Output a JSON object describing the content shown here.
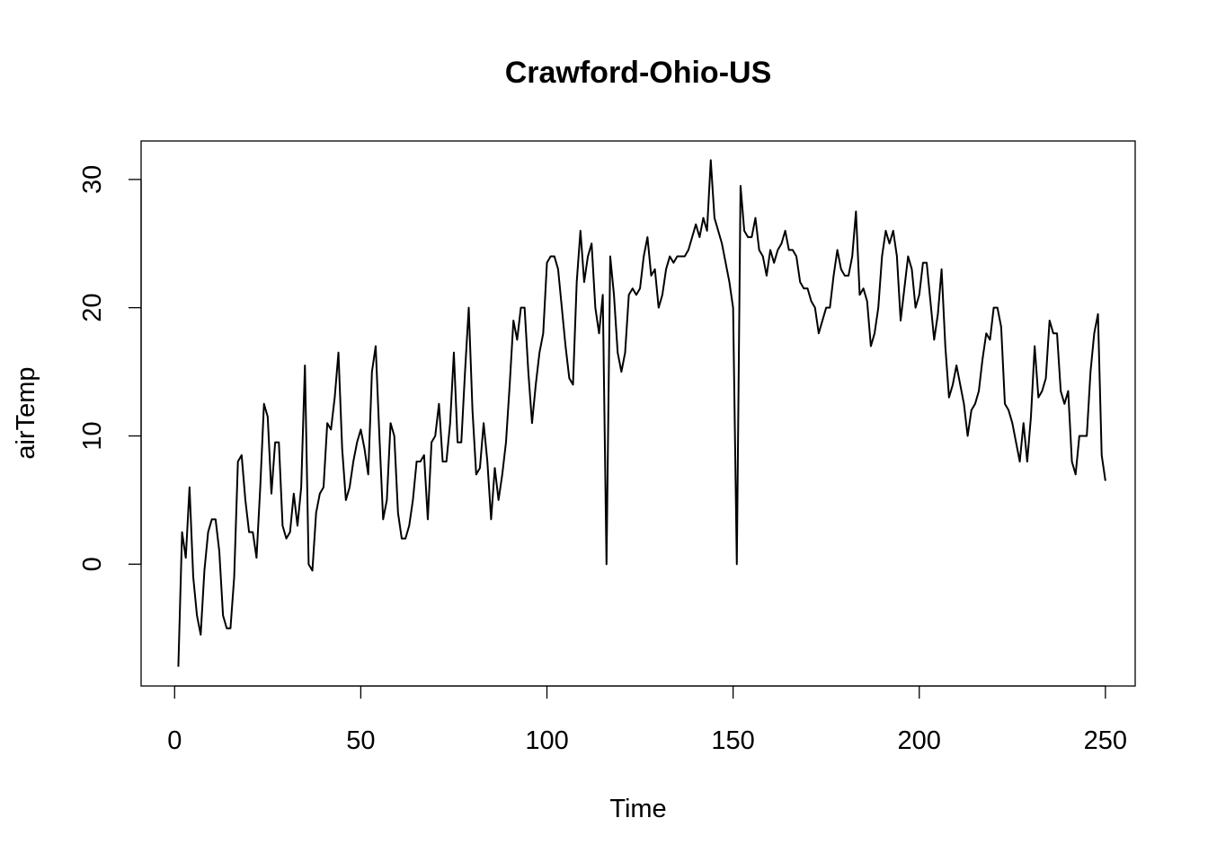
{
  "chart_data": {
    "type": "line",
    "title": "Crawford-Ohio-US",
    "xlabel": "Time",
    "ylabel": "airTemp",
    "xlim": [
      -9,
      258
    ],
    "ylim": [
      -9.5,
      33
    ],
    "x_ticks": [
      0,
      50,
      100,
      150,
      200,
      250
    ],
    "y_ticks": [
      0,
      10,
      20,
      30
    ],
    "grid": false,
    "line_color": "#000000",
    "series": [
      {
        "x_start": 1,
        "values": [
          -8,
          2.5,
          0.5,
          6,
          -1,
          -4,
          -5.5,
          -0.5,
          2.5,
          3.5,
          3.5,
          1,
          -4,
          -5,
          -5,
          -1,
          8,
          8.5,
          5,
          2.5,
          2.5,
          0.5,
          6,
          12.5,
          11.5,
          5.5,
          9.5,
          9.5,
          3,
          2,
          2.5,
          5.5,
          3,
          6,
          15.5,
          0,
          -0.5,
          4,
          5.5,
          6,
          11,
          10.5,
          13,
          16.5,
          9,
          5,
          6,
          8,
          9.5,
          10.5,
          9,
          7,
          15,
          17,
          10,
          3.5,
          5,
          11,
          10,
          4,
          2,
          2,
          3,
          5,
          8,
          8,
          8.5,
          3.5,
          9.5,
          10,
          12.5,
          8,
          8,
          11,
          16.5,
          9.5,
          9.5,
          15,
          20,
          12,
          7,
          7.5,
          11,
          8,
          3.5,
          7.5,
          5,
          7,
          9.5,
          14,
          19,
          17.5,
          20,
          20,
          15,
          11,
          14,
          16.5,
          18,
          23.5,
          24,
          24,
          23,
          20,
          17,
          14.5,
          14,
          22,
          26,
          22,
          24,
          25,
          20,
          18,
          21,
          0,
          24,
          21,
          16.5,
          15,
          16.5,
          21,
          21.5,
          21,
          21.5,
          24,
          25.5,
          22.5,
          23,
          20,
          21,
          23,
          24,
          23.5,
          24,
          24,
          24,
          24.5,
          25.5,
          26.5,
          25.5,
          27,
          26,
          31.5,
          27,
          26,
          25,
          23.5,
          22,
          20,
          0,
          29.5,
          26,
          25.5,
          25.5,
          27,
          24.5,
          24,
          22.5,
          24.5,
          23.5,
          24.5,
          25,
          26,
          24.5,
          24.5,
          24,
          22,
          21.5,
          21.5,
          20.5,
          20,
          18,
          19,
          20,
          20,
          22.5,
          24.5,
          23,
          22.5,
          22.5,
          24,
          27.5,
          21,
          21.5,
          20.5,
          17,
          18,
          20,
          24,
          26,
          25,
          26,
          24,
          19,
          21.5,
          24,
          23,
          20,
          21,
          23.5,
          23.5,
          20.5,
          17.5,
          19.5,
          23,
          17,
          13,
          14,
          15.5,
          14,
          12.5,
          10,
          12,
          12.5,
          13.5,
          16,
          18,
          17.5,
          20,
          20,
          18.5,
          12.5,
          12,
          11,
          9.5,
          8,
          11,
          8,
          11.5,
          17,
          13,
          13.5,
          14.5,
          19,
          18,
          18,
          13.5,
          12.5,
          13.5,
          8,
          7,
          10,
          10,
          10,
          15,
          18,
          19.5,
          8.5,
          6.5
        ]
      }
    ]
  }
}
